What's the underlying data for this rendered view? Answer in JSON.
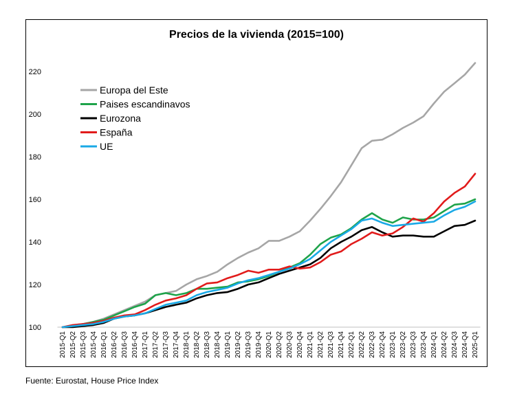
{
  "chart_data": {
    "type": "line",
    "title": "Precios de la vivienda (2015=100)",
    "xlabel": "",
    "ylabel": "",
    "ylim": [
      100,
      230
    ],
    "yticks": [
      100,
      120,
      140,
      160,
      180,
      200,
      220
    ],
    "grid": false,
    "legend_position": "upper-left",
    "categories": [
      "2015-Q1",
      "2015-Q2",
      "2015-Q3",
      "2015-Q4",
      "2016-Q1",
      "2016-Q2",
      "2016-Q3",
      "2016-Q4",
      "2017-Q1",
      "2017-Q2",
      "2017-Q3",
      "2017-Q4",
      "2018-Q1",
      "2018-Q2",
      "2018-Q3",
      "2018-Q4",
      "2019-Q1",
      "2019-Q2",
      "2019-Q3",
      "2019-Q4",
      "2020-Q1",
      "2020-Q2",
      "2020-Q3",
      "2020-Q4",
      "2021-Q1",
      "2021-Q2",
      "2021-Q3",
      "2021-Q4",
      "2022-Q1",
      "2022-Q2",
      "2022-Q3",
      "2022-Q4",
      "2023-Q1",
      "2023-Q2",
      "2023-Q3",
      "2023-Q4",
      "2024-Q1",
      "2024-Q2",
      "2024-Q3",
      "2024-Q4",
      "2025-Q1"
    ],
    "series": [
      {
        "name": "Europa del Este",
        "color": "#a6a6a6",
        "values": [
          100,
          101,
          101.5,
          102.5,
          104,
          106,
          108,
          110,
          112,
          115,
          116,
          117,
          120,
          122.5,
          124,
          126,
          129.5,
          132.5,
          135,
          137,
          140.5,
          140.5,
          142.5,
          145,
          150,
          155.5,
          161.5,
          168,
          176,
          184,
          187.5,
          188,
          190.5,
          193.5,
          196,
          199,
          205,
          210.5,
          214.5,
          218.5,
          224
        ]
      },
      {
        "name": "Paises escandinavos",
        "color": "#1ea34a",
        "values": [
          100,
          100.5,
          101.5,
          102.5,
          103.5,
          105.5,
          107.5,
          109.5,
          111,
          115,
          116,
          115,
          116,
          118,
          118,
          118.5,
          119,
          121,
          121.5,
          122.5,
          124,
          126,
          128,
          130,
          134,
          139,
          142,
          143.5,
          146.5,
          150.5,
          153.5,
          150.5,
          149,
          151.5,
          150.5,
          150.5,
          151.5,
          154.5,
          157.5,
          158,
          160
        ]
      },
      {
        "name": "Eurozona",
        "color": "#000000",
        "values": [
          100,
          100,
          100.5,
          101,
          102,
          104,
          105,
          105.5,
          106.5,
          108,
          109.5,
          110.5,
          111.5,
          113.5,
          115,
          116,
          116.5,
          118,
          120,
          121,
          123,
          125,
          126.5,
          128,
          129.5,
          132.5,
          137,
          140,
          142.5,
          145.5,
          147,
          144.5,
          142.5,
          143,
          143,
          142.5,
          142.5,
          145,
          147.5,
          148,
          150
        ]
      },
      {
        "name": "España",
        "color": "#e11b1b",
        "values": [
          100,
          101,
          101.5,
          102,
          103,
          104.5,
          105.5,
          106,
          108,
          110.5,
          112.5,
          113.5,
          115,
          118,
          120.5,
          121,
          123,
          124.5,
          126.5,
          125.5,
          127,
          127,
          128.5,
          127.5,
          128,
          130.5,
          134,
          135.5,
          139,
          141.5,
          144.5,
          143,
          144,
          147,
          151,
          149.5,
          153.5,
          159,
          163,
          166,
          172
        ]
      },
      {
        "name": "UE",
        "color": "#19a9e6",
        "values": [
          100,
          100.5,
          101,
          101.5,
          102.5,
          104,
          105,
          105.5,
          106.5,
          108.5,
          110.5,
          111.5,
          112.5,
          115,
          116.5,
          117.5,
          118.5,
          120.5,
          122,
          123,
          124.5,
          126,
          127.5,
          129.5,
          132,
          136,
          140,
          143,
          146,
          150,
          151,
          149,
          147.5,
          148,
          148.5,
          149,
          149.5,
          152.5,
          155,
          156.5,
          159
        ]
      }
    ]
  },
  "source": "Fuente: Eurostat, House Price Index"
}
